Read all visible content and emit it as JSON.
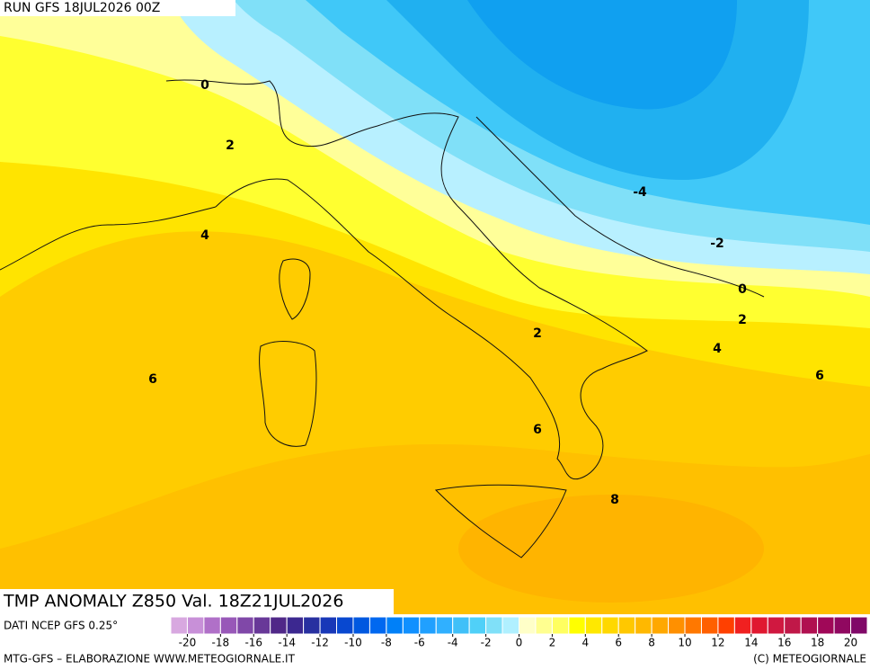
{
  "header": {
    "run": "RUN GFS 18JUL2026 00Z"
  },
  "map": {
    "title": "TMP ANOMALY Z850 Val. 18Z21JUL2026",
    "contour_labels": [
      0,
      2,
      4,
      6,
      2,
      6,
      8,
      -4,
      -2,
      0,
      2,
      4,
      6
    ]
  },
  "colorbar": {
    "source": "DATI NCEP GFS 0.25°",
    "lim": [
      -21,
      21
    ],
    "ticks": [
      -20,
      -18,
      -16,
      -14,
      -12,
      -10,
      -8,
      -6,
      -4,
      -2,
      0,
      2,
      4,
      6,
      8,
      10,
      12,
      14,
      16,
      18,
      20
    ],
    "colors": [
      "#d8a8e0",
      "#c890d8",
      "#b070c8",
      "#9858b8",
      "#8048a8",
      "#683898",
      "#502888",
      "#3c2890",
      "#2830a0",
      "#1838b8",
      "#0848d0",
      "#0058e0",
      "#0068f0",
      "#0080f8",
      "#1090ff",
      "#20a0ff",
      "#30b0ff",
      "#40c0f8",
      "#50d0f8",
      "#80e0f8",
      "#b0f0ff",
      "#ffffc8",
      "#ffff90",
      "#ffff60",
      "#ffff00",
      "#ffe800",
      "#ffd800",
      "#ffc800",
      "#ffb800",
      "#ffa800",
      "#ff9000",
      "#ff7800",
      "#ff6000",
      "#ff4000",
      "#f02020",
      "#e01830",
      "#d01840",
      "#c01848",
      "#b01050",
      "#a00858",
      "#900860",
      "#800868"
    ]
  },
  "footer": {
    "left": "MTG-GFS – ELABORAZIONE WWW.METEOGIORNALE.IT",
    "right": "(C) METEOGIORNALE"
  }
}
